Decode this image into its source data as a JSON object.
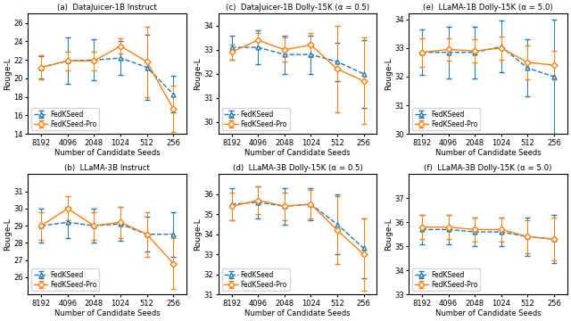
{
  "chart_data": [
    {
      "type": "line",
      "title": "(a)  DataJuicer-1B Instruct",
      "x_label": "Number of Candidate Seeds",
      "y_label": "Rouge-L",
      "categories": [
        "8192",
        "4096",
        "2048",
        "1024",
        "512",
        "256"
      ],
      "ylim": [
        14,
        27
      ],
      "yticks": [
        14,
        16,
        18,
        20,
        22,
        24,
        26
      ],
      "grid": false,
      "legend": "lower left",
      "series": [
        {
          "name": "FedKSeed",
          "marker": "triangle",
          "line_style": "dashed",
          "values": [
            21.2,
            21.9,
            22.0,
            22.2,
            21.2,
            18.3
          ],
          "errors": [
            1.2,
            2.5,
            2.2,
            1.8,
            3.5,
            2.0
          ]
        },
        {
          "name": "FedKSeed-Pro",
          "marker": "diamond",
          "line_style": "solid",
          "values": [
            21.2,
            21.9,
            21.9,
            23.5,
            21.8,
            16.7
          ],
          "errors": [
            1.3,
            1.0,
            1.0,
            0.8,
            3.8,
            2.5
          ]
        }
      ]
    },
    {
      "type": "line",
      "title": "(c)  DataJuicer-1B Dolly-15K (α = 0.5)",
      "x_label": "Number of Candidate Seeds",
      "y_label": "Rouge-L",
      "categories": [
        "8192",
        "4096",
        "2048",
        "1024",
        "512",
        "256"
      ],
      "ylim": [
        29.5,
        34.5
      ],
      "yticks": [
        30,
        31,
        32,
        33,
        34
      ],
      "grid": false,
      "legend": "lower left",
      "series": [
        {
          "name": "FedKSeed",
          "marker": "triangle",
          "line_style": "dashed",
          "values": [
            33.1,
            33.1,
            32.8,
            32.8,
            32.5,
            32.0
          ],
          "errors": [
            0.5,
            0.7,
            0.8,
            0.8,
            0.8,
            1.4
          ]
        },
        {
          "name": "FedKSeed-Pro",
          "marker": "diamond",
          "line_style": "solid",
          "values": [
            32.9,
            33.4,
            33.0,
            33.2,
            32.2,
            31.7
          ],
          "errors": [
            0.3,
            0.3,
            0.5,
            0.5,
            1.8,
            1.8
          ]
        }
      ]
    },
    {
      "type": "line",
      "title": "(e)  LLaMA-1B Dolly-15K (α = 5.0)",
      "x_label": "Number of Candidate Seeds",
      "y_label": "Rouge-L",
      "categories": [
        "8192",
        "4096",
        "2048",
        "1024",
        "512",
        "256"
      ],
      "ylim": [
        30.0,
        34.2
      ],
      "yticks": [
        30,
        31,
        32,
        33,
        34
      ],
      "grid": false,
      "legend": "lower left",
      "series": [
        {
          "name": "FedKSeed",
          "marker": "triangle",
          "line_style": "dashed",
          "values": [
            32.85,
            32.85,
            32.85,
            33.05,
            32.3,
            32.0
          ],
          "errors": [
            0.8,
            0.9,
            0.9,
            0.9,
            1.0,
            2.0
          ]
        },
        {
          "name": "FedKSeed-Pro",
          "marker": "diamond",
          "line_style": "solid",
          "values": [
            32.85,
            32.95,
            32.9,
            33.0,
            32.5,
            32.4
          ],
          "errors": [
            0.5,
            0.4,
            0.4,
            0.4,
            0.6,
            0.5
          ]
        }
      ]
    },
    {
      "type": "line",
      "title": "(b)  LLaMA-3B Instruct",
      "x_label": "Number of Candidate Seeds",
      "y_label": "Rouge-L",
      "categories": [
        "8192",
        "4096",
        "2048",
        "1024",
        "512",
        "256"
      ],
      "ylim": [
        25,
        32
      ],
      "yticks": [
        26,
        27,
        28,
        29,
        30,
        31
      ],
      "grid": false,
      "legend": "lower left",
      "series": [
        {
          "name": "FedKSeed",
          "marker": "triangle",
          "line_style": "dashed",
          "values": [
            29.0,
            29.2,
            29.0,
            29.1,
            28.5,
            28.5
          ],
          "errors": [
            1.0,
            0.9,
            1.0,
            1.0,
            1.0,
            1.3
          ]
        },
        {
          "name": "FedKSeed-Pro",
          "marker": "diamond",
          "line_style": "solid",
          "values": [
            29.0,
            30.0,
            29.0,
            29.2,
            28.5,
            26.8
          ],
          "errors": [
            0.8,
            0.7,
            0.8,
            0.9,
            1.3,
            1.5
          ]
        }
      ]
    },
    {
      "type": "line",
      "title": "(d)  LLaMA-3B Dolly-15K (α = 0.5)",
      "x_label": "Number of Candidate Seeds",
      "y_label": "Rouge-L",
      "categories": [
        "8192",
        "4096",
        "2048",
        "1024",
        "512",
        "256"
      ],
      "ylim": [
        31,
        37
      ],
      "yticks": [
        31,
        32,
        33,
        34,
        35,
        36
      ],
      "grid": false,
      "legend": "lower left",
      "series": [
        {
          "name": "FedKSeed",
          "marker": "triangle",
          "line_style": "dashed",
          "values": [
            35.5,
            35.6,
            35.4,
            35.5,
            34.5,
            33.3
          ],
          "errors": [
            0.8,
            0.8,
            0.9,
            0.8,
            1.5,
            1.5
          ]
        },
        {
          "name": "FedKSeed-Pro",
          "marker": "diamond",
          "line_style": "solid",
          "values": [
            35.4,
            35.7,
            35.4,
            35.5,
            34.2,
            33.0
          ],
          "errors": [
            0.7,
            0.7,
            0.7,
            0.7,
            1.7,
            1.8
          ]
        }
      ]
    },
    {
      "type": "line",
      "title": "(f)  LLaMA-3B Dolly-15K (α = 5.0)",
      "x_label": "Number of Candidate Seeds",
      "y_label": "Rouge-L",
      "categories": [
        "8192",
        "4096",
        "2048",
        "1024",
        "512",
        "256"
      ],
      "ylim": [
        33,
        38
      ],
      "yticks": [
        33,
        34,
        35,
        36,
        37
      ],
      "grid": false,
      "legend": "lower left",
      "series": [
        {
          "name": "FedKSeed",
          "marker": "triangle",
          "line_style": "dashed",
          "values": [
            35.7,
            35.7,
            35.6,
            35.6,
            35.4,
            35.3
          ],
          "errors": [
            0.6,
            0.6,
            0.6,
            0.6,
            0.8,
            1.0
          ]
        },
        {
          "name": "FedKSeed-Pro",
          "marker": "diamond",
          "line_style": "solid",
          "values": [
            35.8,
            35.8,
            35.7,
            35.7,
            35.4,
            35.3
          ],
          "errors": [
            0.5,
            0.5,
            0.5,
            0.5,
            0.7,
            0.9
          ]
        }
      ]
    }
  ]
}
